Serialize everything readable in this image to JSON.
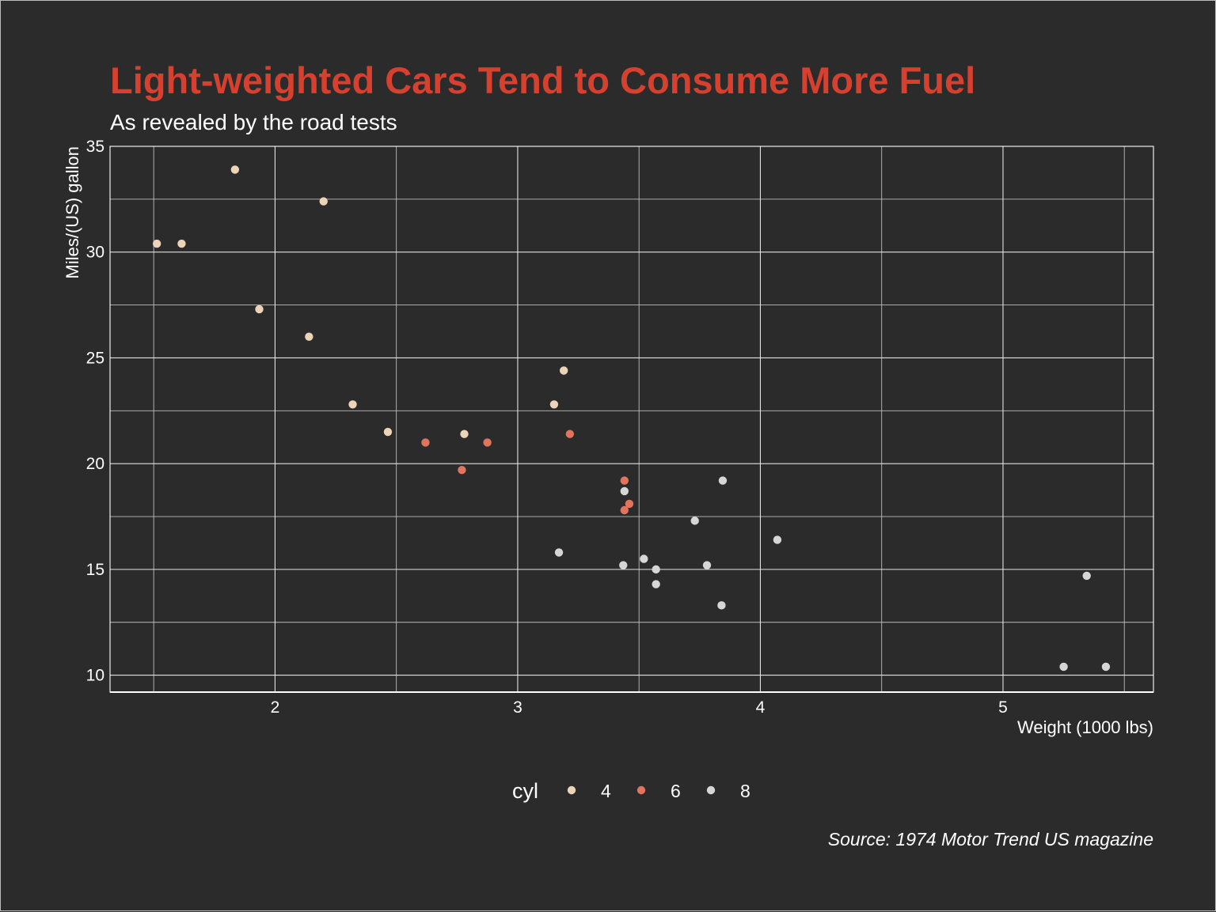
{
  "chart_data": {
    "type": "scatter",
    "title": "Light-weighted Cars Tend to Consume More Fuel",
    "subtitle": "As revealed by the road tests",
    "xlabel": "Weight (1000 lbs)",
    "ylabel": "Miles/(US) gallon",
    "caption": "Source:  1974 Motor Trend US magazine",
    "xlim": [
      1.32,
      5.62
    ],
    "ylim": [
      9.2,
      35.0
    ],
    "x_ticks": [
      2,
      3,
      4,
      5
    ],
    "x_tick_labels": [
      "2",
      "3",
      "4",
      "5"
    ],
    "x_minor_ticks": [
      1.5,
      2.5,
      3.5,
      4.5,
      5.5
    ],
    "y_ticks": [
      10,
      15,
      20,
      25,
      30,
      35
    ],
    "y_tick_labels": [
      "10",
      "15",
      "20",
      "25",
      "30",
      "35"
    ],
    "y_minor_ticks": [
      12.5,
      17.5,
      22.5,
      27.5,
      32.5
    ],
    "grid": true,
    "legend": {
      "title": "cyl",
      "position": "bottom"
    },
    "series": [
      {
        "name": "4",
        "color": "#edd3b8",
        "points": [
          {
            "x": 2.32,
            "y": 22.8
          },
          {
            "x": 3.19,
            "y": 24.4
          },
          {
            "x": 3.15,
            "y": 22.8
          },
          {
            "x": 2.2,
            "y": 32.4
          },
          {
            "x": 1.615,
            "y": 30.4
          },
          {
            "x": 1.835,
            "y": 33.9
          },
          {
            "x": 2.465,
            "y": 21.5
          },
          {
            "x": 1.935,
            "y": 27.3
          },
          {
            "x": 2.14,
            "y": 26.0
          },
          {
            "x": 1.513,
            "y": 30.4
          },
          {
            "x": 2.78,
            "y": 21.4
          }
        ]
      },
      {
        "name": "6",
        "color": "#e2735e",
        "points": [
          {
            "x": 2.62,
            "y": 21.0
          },
          {
            "x": 2.875,
            "y": 21.0
          },
          {
            "x": 3.215,
            "y": 21.4
          },
          {
            "x": 3.46,
            "y": 18.1
          },
          {
            "x": 3.44,
            "y": 19.2
          },
          {
            "x": 3.44,
            "y": 17.8
          },
          {
            "x": 2.77,
            "y": 19.7
          }
        ]
      },
      {
        "name": "8",
        "color": "#d6d6d6",
        "points": [
          {
            "x": 3.44,
            "y": 18.7
          },
          {
            "x": 3.57,
            "y": 14.3
          },
          {
            "x": 4.07,
            "y": 16.4
          },
          {
            "x": 3.73,
            "y": 17.3
          },
          {
            "x": 3.78,
            "y": 15.2
          },
          {
            "x": 5.25,
            "y": 10.4
          },
          {
            "x": 5.424,
            "y": 10.4
          },
          {
            "x": 5.345,
            "y": 14.7
          },
          {
            "x": 3.52,
            "y": 15.5
          },
          {
            "x": 3.435,
            "y": 15.2
          },
          {
            "x": 3.84,
            "y": 13.3
          },
          {
            "x": 3.845,
            "y": 19.2
          },
          {
            "x": 3.17,
            "y": 15.8
          },
          {
            "x": 3.57,
            "y": 15.0
          }
        ]
      }
    ]
  }
}
